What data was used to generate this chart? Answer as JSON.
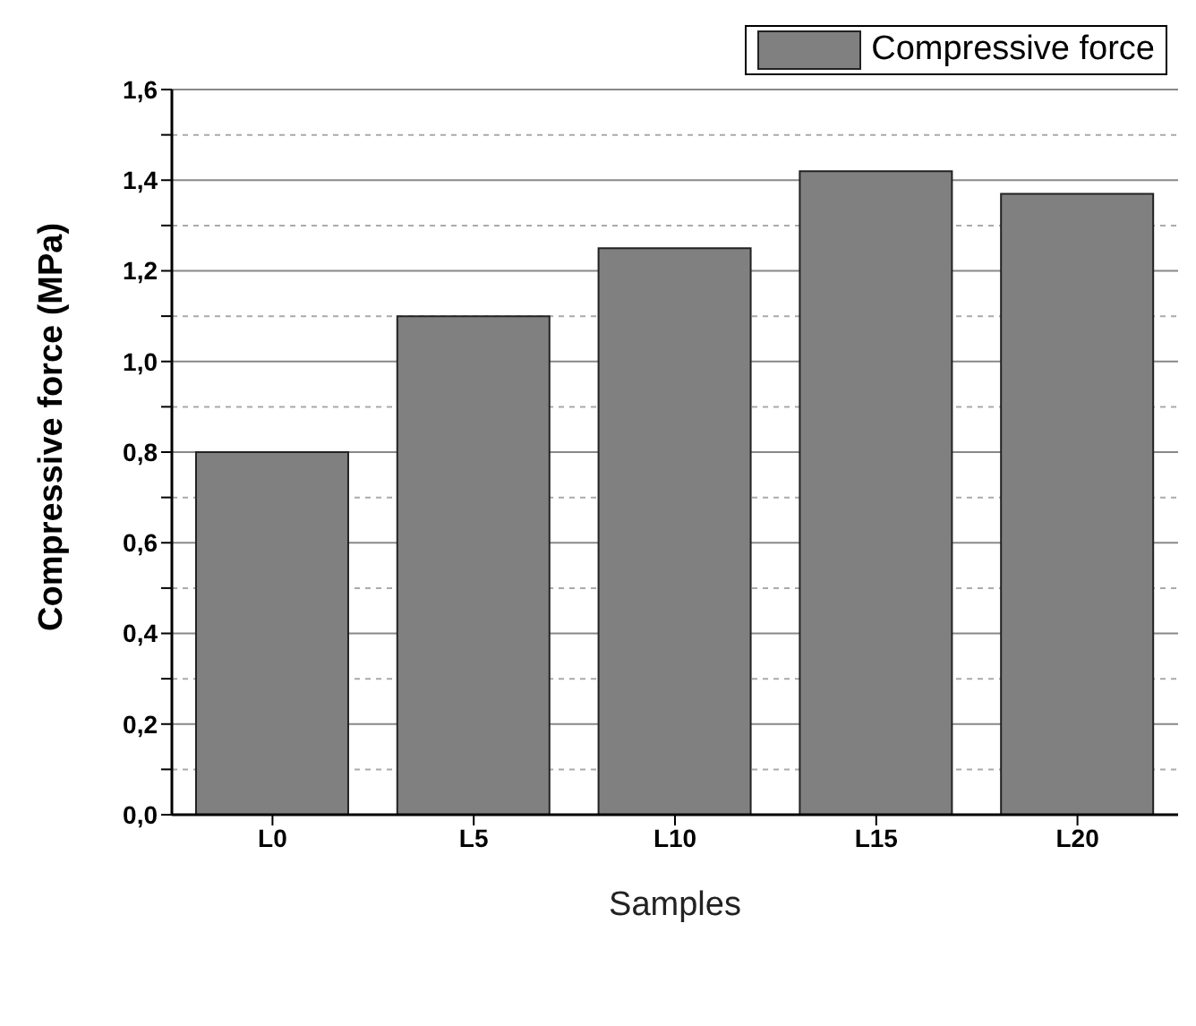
{
  "chart_data": {
    "type": "bar",
    "xlabel": "Samples",
    "ylabel": "Compressive force (MPa)",
    "categories": [
      "L0",
      "L5",
      "L10",
      "L15",
      "L20"
    ],
    "series": [
      {
        "name": "Compressive force",
        "color": "#808080",
        "values": [
          0.8,
          1.1,
          1.25,
          1.42,
          1.37
        ]
      }
    ],
    "ylim": [
      0,
      1.6
    ],
    "yticks": [
      {
        "value": 0,
        "label": "0,0"
      },
      {
        "value": 0.1,
        "label": null
      },
      {
        "value": 0.2,
        "label": "0,2"
      },
      {
        "value": 0.3,
        "label": null
      },
      {
        "value": 0.4,
        "label": "0,4"
      },
      {
        "value": 0.5,
        "label": null
      },
      {
        "value": 0.6,
        "label": "0,6"
      },
      {
        "value": 0.7,
        "label": null
      },
      {
        "value": 0.8,
        "label": "0,8"
      },
      {
        "value": 0.9,
        "label": null
      },
      {
        "value": 1.0,
        "label": "1,0"
      },
      {
        "value": 1.1,
        "label": null
      },
      {
        "value": 1.2,
        "label": "1,2"
      },
      {
        "value": 1.3,
        "label": null
      },
      {
        "value": 1.4,
        "label": "1,4"
      },
      {
        "value": 1.5,
        "label": null
      },
      {
        "value": 1.6,
        "label": "1,6"
      }
    ],
    "grid": "y",
    "legend": "top right"
  }
}
